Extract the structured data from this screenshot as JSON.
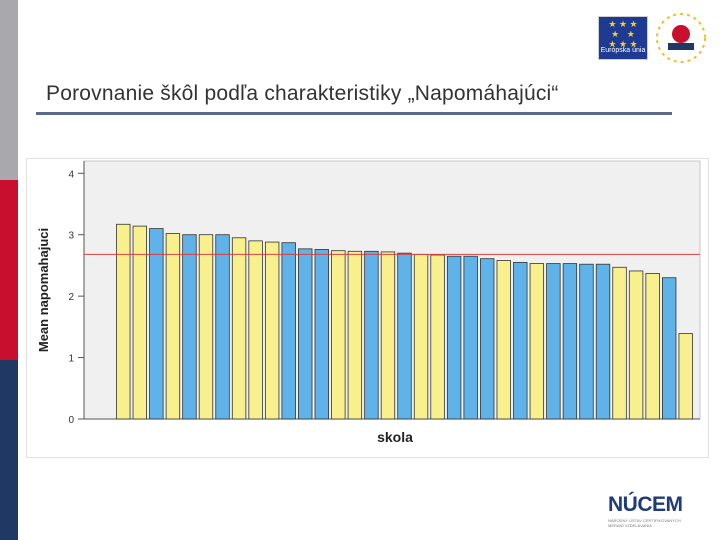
{
  "page": {
    "title": "Porovnanie škôl podľa charakteristiky „Napomáhajúci“"
  },
  "logos": {
    "eu_text": "Európska únia",
    "esf_name": "esf-logo",
    "nucem_title": "NÚCEM",
    "nucem_sub": "NÁRODNÝ ÚSTAV CERTIFIKOVANÝCH MERANÍ VZDELÁVANIA"
  },
  "colors": {
    "yellow_bar": "#f7f08c",
    "blue_bar": "#5fb3e8",
    "plot_bg": "#f0f0f0",
    "reference_line": "#d94040",
    "side_gray": "#a9a9ad",
    "side_red": "#c8102e",
    "side_navy": "#1f3864"
  },
  "chart_data": {
    "type": "bar",
    "xlabel": "skola",
    "ylabel": "Mean napomahajuci",
    "ylim": [
      0,
      4.2
    ],
    "yticks": [
      0,
      1,
      2,
      3,
      4
    ],
    "reference_line": 2.68,
    "grid": false,
    "values": [
      3.17,
      3.14,
      3.1,
      3.02,
      3.0,
      3.0,
      3.0,
      2.95,
      2.9,
      2.88,
      2.87,
      2.77,
      2.76,
      2.74,
      2.73,
      2.73,
      2.72,
      2.7,
      2.68,
      2.67,
      2.65,
      2.65,
      2.61,
      2.58,
      2.55,
      2.53,
      2.53,
      2.53,
      2.52,
      2.52,
      2.47,
      2.41,
      2.37,
      2.3,
      1.39
    ],
    "bar_colors": [
      "yellow",
      "yellow",
      "blue",
      "yellow",
      "blue",
      "yellow",
      "blue",
      "yellow",
      "yellow",
      "yellow",
      "blue",
      "blue",
      "blue",
      "yellow",
      "yellow",
      "blue",
      "yellow",
      "blue",
      "yellow",
      "yellow",
      "blue",
      "blue",
      "blue",
      "yellow",
      "blue",
      "yellow",
      "blue",
      "blue",
      "blue",
      "blue",
      "yellow",
      "yellow",
      "yellow",
      "blue",
      "yellow"
    ]
  }
}
